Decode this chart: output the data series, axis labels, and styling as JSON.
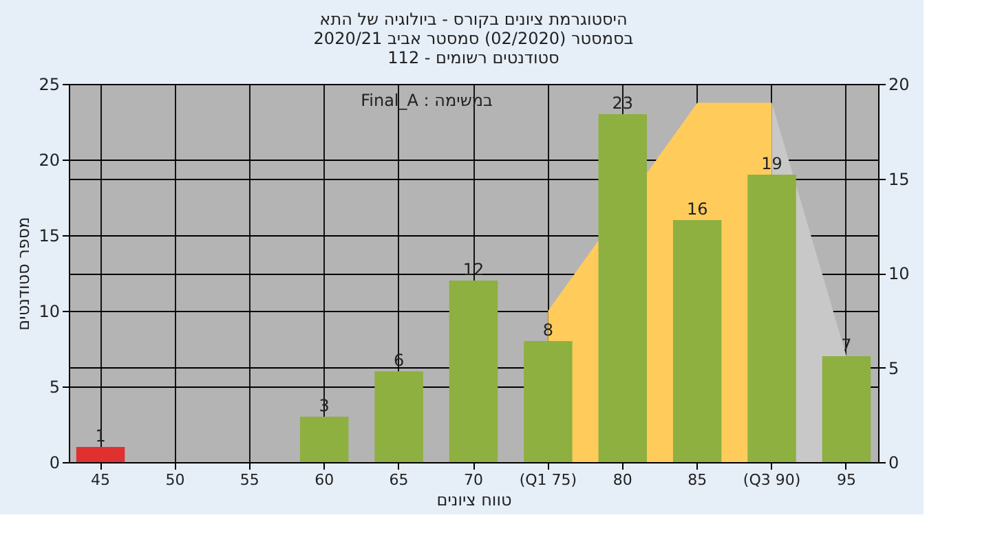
{
  "chart_data": {
    "type": "bar",
    "title": [
      "היסטוגרמת ציונים בקורס - ביולוגיה של התא",
      "בסמסטר  (02/2020)  סמסטר אביב 2020/21",
      "סטודנטים רשומים - 112"
    ],
    "xlabel": "טווח ציונים",
    "ylabel": "מספר סטודנטים",
    "annotations": [
      "Final_A : במשימה"
    ],
    "categories": [
      "45",
      "50",
      "55",
      "60",
      "65",
      "70",
      "(Q1 75)",
      "80",
      "85",
      "(Q3 90)",
      "95"
    ],
    "series": [
      {
        "type": "area",
        "axis": "y2",
        "color": "#c8c8c8",
        "values": [
          null,
          null,
          null,
          null,
          null,
          null,
          null,
          null,
          null,
          19,
          5.6
        ]
      },
      {
        "type": "area",
        "axis": "y2",
        "color": "#ffcc5c",
        "values": [
          null,
          null,
          null,
          null,
          null,
          null,
          8,
          null,
          19,
          19,
          null
        ]
      },
      {
        "colors": [
          "#e03030",
          "#8db040",
          "#8db040",
          "#8db040",
          "#8db040",
          "#8db040",
          "#8db040",
          "#8db040",
          "#8db040",
          "#8db040",
          "#8db040"
        ],
        "values": [
          1,
          0,
          0,
          3,
          6,
          12,
          8,
          23,
          16,
          19,
          7
        ],
        "value_labels": [
          "1",
          null,
          null,
          "3",
          "6",
          "12",
          "8",
          "23",
          "16",
          "19",
          "7"
        ]
      }
    ],
    "ylim": [
      0,
      25
    ],
    "yticks": [
      0,
      5,
      10,
      15,
      20,
      25
    ],
    "y2lim": [
      0,
      20
    ],
    "y2ticks": [
      0,
      5,
      10,
      15,
      20
    ],
    "grid": true
  }
}
